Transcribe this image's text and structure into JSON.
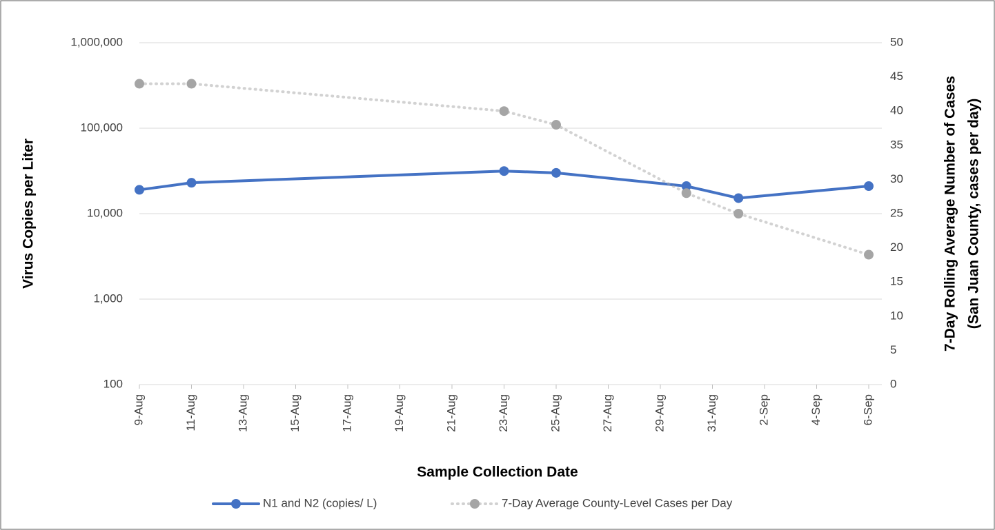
{
  "chart_data": {
    "type": "line",
    "xlabel": "Sample Collection Date",
    "ylabel": "Virus Copies per Liter",
    "y2label": [
      "7-Day Rolling Average Number of Cases",
      "(San Juan County, cases per day)"
    ],
    "x": [
      "9-Aug",
      "11-Aug",
      "23-Aug",
      "25-Aug",
      "30-Aug",
      "1-Sep",
      "6-Sep"
    ],
    "xlim": [
      "9-Aug",
      "6-Sep"
    ],
    "xticks": [
      "9-Aug",
      "11-Aug",
      "13-Aug",
      "15-Aug",
      "17-Aug",
      "19-Aug",
      "21-Aug",
      "23-Aug",
      "25-Aug",
      "27-Aug",
      "29-Aug",
      "31-Aug",
      "2-Sep",
      "4-Sep",
      "6-Sep"
    ],
    "yscale": "log",
    "ylim": [
      100,
      1000000
    ],
    "yticks": [
      100,
      {
        "value": 1000,
        "label": "1,000"
      },
      {
        "value": 10000,
        "label": "10,000"
      },
      {
        "value": 100000,
        "label": "100,000"
      },
      {
        "value": 1000000,
        "label": "1,000,000"
      }
    ],
    "y2lim": [
      0,
      50
    ],
    "y2ticks": [
      0,
      5,
      10,
      15,
      20,
      25,
      30,
      35,
      40,
      45,
      50
    ],
    "grid": true,
    "legend": "bottom",
    "series": [
      {
        "name": "N1 and N2 (copies/ L)",
        "color": "#4472c4",
        "line_style": "solid",
        "values": [
          19000,
          23000,
          31500,
          30000,
          21000,
          15200,
          21000
        ]
      },
      {
        "name": "7-Day Average County-Level Cases per Day",
        "color": "#a5a5a5",
        "line_style": "dotted",
        "axis": "y2",
        "values": [
          44,
          44,
          40,
          38,
          28,
          25,
          19
        ]
      }
    ]
  }
}
